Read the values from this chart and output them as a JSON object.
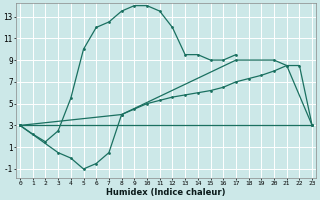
{
  "xlabel": "Humidex (Indice chaleur)",
  "bg_color": "#cce8e8",
  "line_color": "#1a7060",
  "grid_color": "#b8d8d8",
  "xlim": [
    -0.3,
    23.3
  ],
  "ylim": [
    -1.8,
    14.2
  ],
  "xticks": [
    0,
    1,
    2,
    3,
    4,
    5,
    6,
    7,
    8,
    9,
    10,
    11,
    12,
    13,
    14,
    15,
    16,
    17,
    18,
    19,
    20,
    21,
    22,
    23
  ],
  "yticks": [
    -1,
    1,
    3,
    5,
    7,
    9,
    11,
    13
  ],
  "line1_x": [
    0,
    1,
    2,
    3,
    4,
    5,
    6,
    7,
    8,
    9,
    10,
    11,
    12,
    13,
    14,
    15,
    16,
    17
  ],
  "line1_y": [
    3,
    2.2,
    1.5,
    2.5,
    5.5,
    10.0,
    12.0,
    12.5,
    13.5,
    14.0,
    14.0,
    13.5,
    12.0,
    9.5,
    9.5,
    9.0,
    9.0,
    9.5
  ],
  "line2_x": [
    0,
    3,
    4,
    5,
    6,
    7,
    8,
    9,
    10,
    11,
    12,
    13,
    14,
    15,
    16,
    17,
    18,
    19,
    20,
    21,
    22,
    23
  ],
  "line2_y": [
    3,
    0.5,
    0.0,
    -1.0,
    -0.5,
    0.5,
    4.0,
    4.5,
    5.0,
    5.3,
    5.6,
    5.8,
    6.0,
    6.2,
    6.5,
    7.0,
    7.3,
    7.6,
    8.0,
    8.5,
    8.5,
    3.0
  ],
  "line3_x": [
    0,
    8,
    17,
    20,
    21,
    23
  ],
  "line3_y": [
    3,
    4,
    9,
    9,
    8.5,
    3
  ],
  "line4_x": [
    0,
    23
  ],
  "line4_y": [
    3,
    3
  ]
}
